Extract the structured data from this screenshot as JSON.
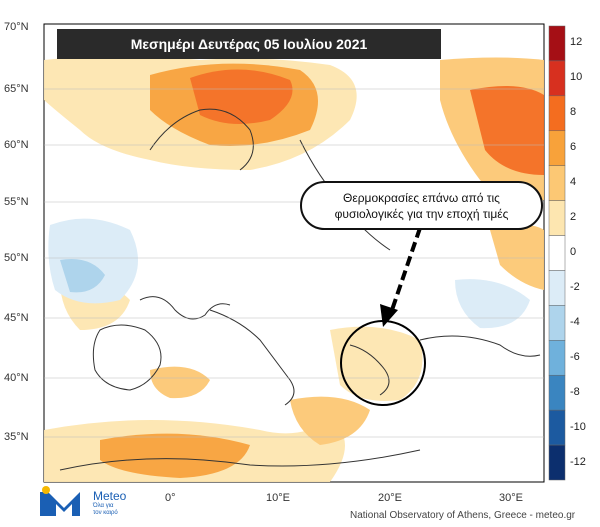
{
  "title": "Μεσημέρι Δευτέρας 05 Ιουλίου 2021",
  "annotation": {
    "line1": "Θερμοκρασίες επάνω από τις",
    "line2": "φυσιολογικές για την εποχή τιμές"
  },
  "lat_labels": [
    "70°N",
    "65°N",
    "60°N",
    "55°N",
    "50°N",
    "45°N",
    "40°N",
    "35°N"
  ],
  "lon_labels": [
    "0°",
    "10°E",
    "20°E",
    "30°E"
  ],
  "colorbar": {
    "labels": [
      "12",
      "10",
      "8",
      "6",
      "4",
      "2",
      "0",
      "-2",
      "-4",
      "-6",
      "-8",
      "-10",
      "-12"
    ],
    "colors": [
      "#a50f15",
      "#d7301f",
      "#f46d1f",
      "#f8a23a",
      "#fcc874",
      "#fde6b0",
      "#ffffff",
      "#dcecf7",
      "#aed4ec",
      "#6fb1dc",
      "#3a85c0",
      "#1c5aa0",
      "#0c2f6e"
    ]
  },
  "logo": {
    "name": "Meteo",
    "tagline": "Όλα για τον καιρό"
  },
  "credit": "National Observatory of Athens, Greece - meteo.gr"
}
